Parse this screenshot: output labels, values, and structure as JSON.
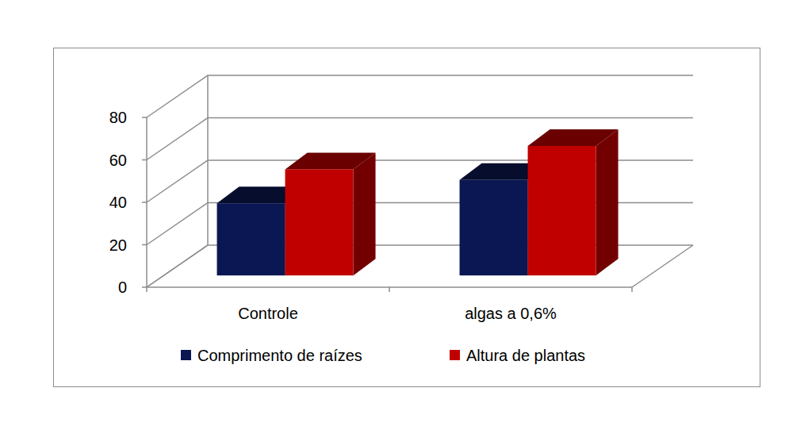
{
  "chart_data": {
    "type": "bar",
    "categories": [
      "Controle",
      "algas a 0,6%"
    ],
    "series": [
      {
        "name": "Comprimento de raízes",
        "color": "#0b1752",
        "values": [
          34,
          45
        ]
      },
      {
        "name": "Altura de plantas",
        "color": "#c00000",
        "values": [
          50,
          61
        ]
      }
    ],
    "ylim": [
      0,
      80
    ],
    "yticks": [
      0,
      20,
      40,
      60,
      80
    ],
    "grid": true,
    "legend": "bottom"
  }
}
